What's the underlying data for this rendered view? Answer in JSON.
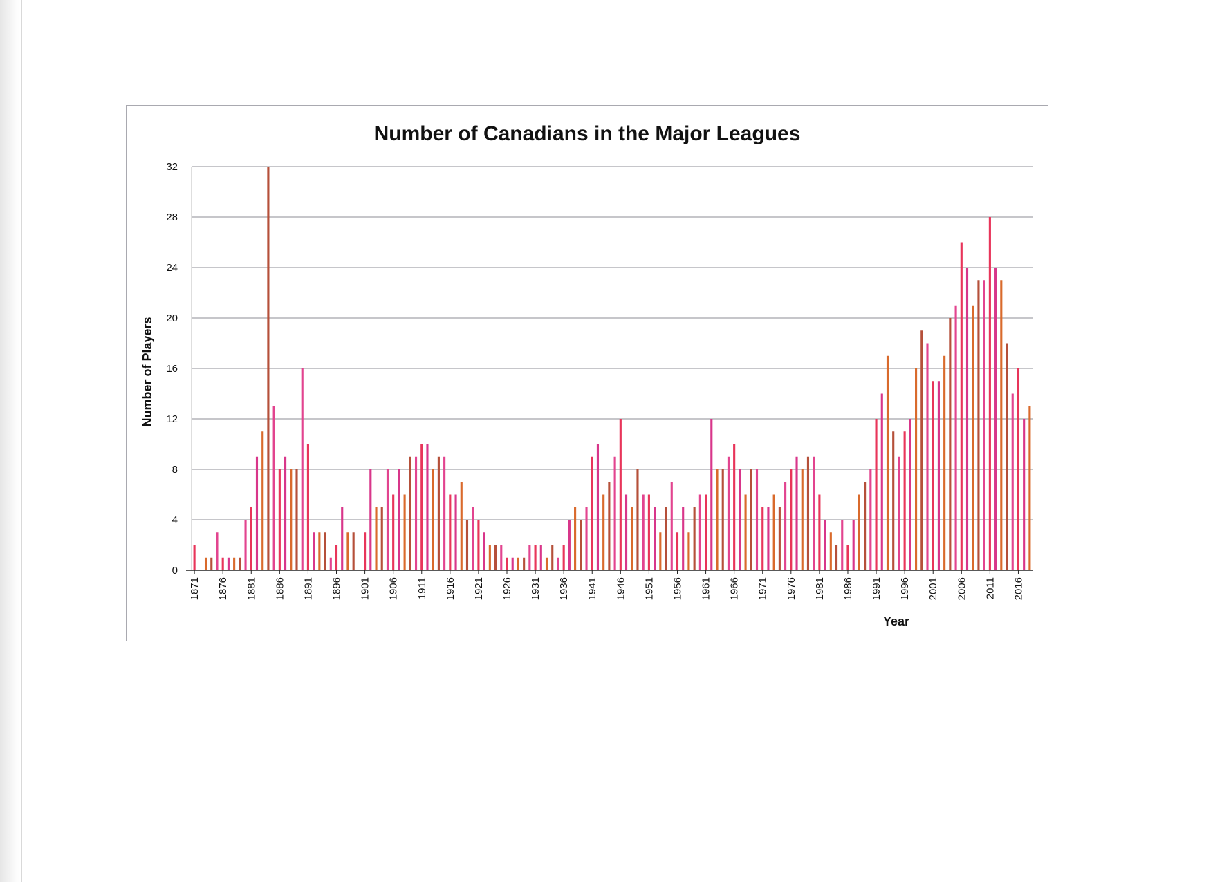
{
  "chart_data": {
    "type": "bar",
    "title": "Number of Canadians in the Major Leagues",
    "xlabel": "Year",
    "ylabel": "Number of Players",
    "ylim": [
      0,
      32
    ],
    "yticks": [
      0,
      4,
      8,
      12,
      16,
      20,
      24,
      28,
      32
    ],
    "xtick_labels": [
      "1871",
      "1876",
      "1881",
      "1886",
      "1891",
      "1896",
      "1901",
      "1906",
      "1911",
      "1916",
      "1921",
      "1926",
      "1931",
      "1936",
      "1941",
      "1946",
      "1951",
      "1956",
      "1961",
      "1966",
      "1971",
      "1976",
      "1981",
      "1986",
      "1991",
      "1996",
      "2001",
      "2006",
      "2011",
      "2016"
    ],
    "grid": true,
    "legend": "none",
    "bar_colors": [
      "#e8355a",
      "#d8368a",
      "#d96a2c",
      "#b5503a",
      "#e2448f"
    ],
    "categories": [
      1871,
      1872,
      1873,
      1874,
      1875,
      1876,
      1877,
      1878,
      1879,
      1880,
      1881,
      1882,
      1883,
      1884,
      1885,
      1886,
      1887,
      1888,
      1889,
      1890,
      1891,
      1892,
      1893,
      1894,
      1895,
      1896,
      1897,
      1898,
      1899,
      1900,
      1901,
      1902,
      1903,
      1904,
      1905,
      1906,
      1907,
      1908,
      1909,
      1910,
      1911,
      1912,
      1913,
      1914,
      1915,
      1916,
      1917,
      1918,
      1919,
      1920,
      1921,
      1922,
      1923,
      1924,
      1925,
      1926,
      1927,
      1928,
      1929,
      1930,
      1931,
      1932,
      1933,
      1934,
      1935,
      1936,
      1937,
      1938,
      1939,
      1940,
      1941,
      1942,
      1943,
      1944,
      1945,
      1946,
      1947,
      1948,
      1949,
      1950,
      1951,
      1952,
      1953,
      1954,
      1955,
      1956,
      1957,
      1958,
      1959,
      1960,
      1961,
      1962,
      1963,
      1964,
      1965,
      1966,
      1967,
      1968,
      1969,
      1970,
      1971,
      1972,
      1973,
      1974,
      1975,
      1976,
      1977,
      1978,
      1979,
      1980,
      1981,
      1982,
      1983,
      1984,
      1985,
      1986,
      1987,
      1988,
      1989,
      1990,
      1991,
      1992,
      1993,
      1994,
      1995,
      1996,
      1997,
      1998,
      1999,
      2000,
      2001,
      2002,
      2003,
      2004,
      2005,
      2006,
      2007,
      2008,
      2009,
      2010,
      2011,
      2012,
      2013,
      2014,
      2015,
      2016,
      2017,
      2018
    ],
    "values": [
      2,
      0,
      1,
      1,
      3,
      1,
      1,
      1,
      1,
      4,
      5,
      9,
      11,
      32,
      13,
      8,
      9,
      8,
      8,
      16,
      10,
      3,
      3,
      3,
      1,
      2,
      5,
      3,
      3,
      0,
      3,
      8,
      5,
      5,
      8,
      6,
      8,
      6,
      9,
      9,
      10,
      10,
      8,
      9,
      9,
      6,
      6,
      7,
      4,
      5,
      4,
      3,
      2,
      2,
      2,
      1,
      1,
      1,
      1,
      2,
      2,
      2,
      1,
      2,
      1,
      2,
      4,
      5,
      4,
      5,
      9,
      10,
      6,
      7,
      9,
      12,
      6,
      5,
      8,
      6,
      6,
      5,
      3,
      5,
      7,
      3,
      5,
      3,
      5,
      6,
      6,
      12,
      8,
      8,
      9,
      10,
      8,
      6,
      8,
      8,
      5,
      5,
      6,
      5,
      7,
      8,
      9,
      8,
      9,
      9,
      6,
      4,
      3,
      2,
      4,
      2,
      4,
      6,
      7,
      8,
      12,
      14,
      17,
      11,
      9,
      11,
      12,
      16,
      19,
      18,
      15,
      15,
      17,
      20,
      21,
      26,
      24,
      21,
      23,
      23,
      28,
      24,
      23,
      18,
      14,
      16,
      12,
      13
    ]
  }
}
